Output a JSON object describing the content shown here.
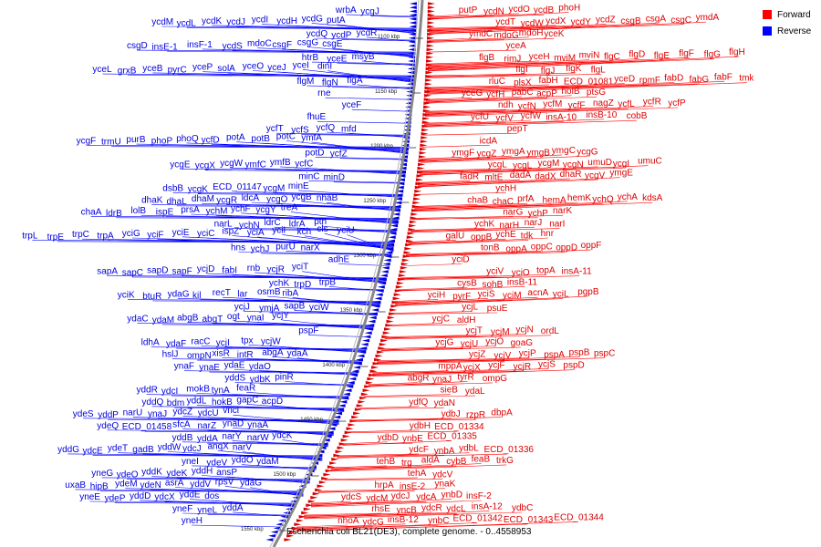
{
  "caption": "Escherichia coli BL21(DE3), complete genome. - 0..4558953",
  "legend": [
    {
      "label": "Forward",
      "color": "#ff0000"
    },
    {
      "label": "Reverse",
      "color": "#0000ff"
    }
  ],
  "ticks": [
    "1100 kbp",
    "1150 kbp",
    "1200 kbp",
    "1250 kbp",
    "1300 kbp",
    "1350 kbp",
    "1400 kbp",
    "1450 kbp",
    "1500 kbp",
    "1550 kbp"
  ],
  "reverse_genes": [
    [
      "wrbA",
      "ycgJ"
    ],
    [
      "ycdM",
      "ycdL",
      "ycdK",
      "ycdJ",
      "ycdI",
      "ycdH",
      "ycdG",
      "putA"
    ],
    [
      "ycdQ",
      "ycdP",
      "ycdR"
    ],
    [
      "csgD",
      "insE-1",
      "insF-1",
      "ycdS",
      "mdoC",
      "csgF",
      "csgG",
      "csgE"
    ],
    [
      "htrB",
      "yceE",
      "msyB"
    ],
    [
      "yceL",
      "grxB",
      "yceB",
      "pyrC",
      "yceP",
      "solA",
      "yceO",
      "yceJ",
      "yceI",
      "dinI"
    ],
    [
      "flgM",
      "flgN",
      "flgA"
    ],
    [
      "rne"
    ],
    [
      "yceF"
    ],
    [
      "fhuE"
    ],
    [
      "ycfT",
      "ycfS",
      "ycfQ",
      "mfd"
    ],
    [
      "ycgF",
      "trmU",
      "purB",
      "phoP",
      "phoQ",
      "ycfD",
      "potA",
      "potB",
      "potC",
      "ymfA"
    ],
    [
      "potD",
      "ycfZ"
    ],
    [
      "ycgE",
      "ycgX",
      "ycgW",
      "ymfC",
      "ymfB",
      "ycfC"
    ],
    [
      "minC",
      "minD"
    ],
    [
      "dsbB",
      "ycgK",
      "ECD_01147",
      "ycgM",
      "minE"
    ],
    [
      "dhaK",
      "dhaL",
      "dhaM",
      "ycgR",
      "ldcA",
      "ycgO",
      "ycgB",
      "nhaB"
    ],
    [
      "chaA",
      "ldrB",
      "lolB",
      "ispE",
      "prsA",
      "ychM",
      "ychF",
      "ycgY",
      "treA"
    ],
    [
      "narL",
      "ychN",
      "ldrC",
      "ldrA",
      "pth"
    ],
    [
      "trpL",
      "trpE",
      "trpC",
      "trpA",
      "yciG",
      "yciF",
      "yciE",
      "yciC",
      "ispZ",
      "yciA",
      "yciI",
      "kch",
      "cls",
      "yciU"
    ],
    [
      "hns",
      "ychJ",
      "purU",
      "narX"
    ],
    [
      "adhE"
    ],
    [
      "sapA",
      "sapC",
      "sapD",
      "sapF",
      "ycjD",
      "fabI",
      "rnb",
      "ycjR",
      "yciT"
    ],
    [
      "ychK",
      "trpD",
      "trpB"
    ],
    [
      "yciK",
      "btuR",
      "ydaG",
      "kil",
      "recT",
      "lar",
      "osmB",
      "ribA"
    ],
    [
      "ycjJ",
      "ymjA",
      "sapB",
      "yciW"
    ],
    [
      "ydaC",
      "ydaM",
      "abgB",
      "abgT",
      "ogt",
      "ynaI",
      "ycjY"
    ],
    [
      "pspF"
    ],
    [
      "ldhA",
      "ydaF",
      "racC",
      "ycjI",
      "tpx",
      "ycjW"
    ],
    [
      "hslJ",
      "ompN",
      "xisR",
      "intR",
      "abgA",
      "ydaA"
    ],
    [
      "ynaF",
      "ynaE",
      "ydaE",
      "ydaO"
    ],
    [
      "yddS",
      "ydbK",
      "pinR"
    ],
    [
      "yddR",
      "ydcI",
      "mokB",
      "tynA",
      "feaR"
    ],
    [
      "yddQ",
      "bdm",
      "yddL",
      "hokB",
      "gapC",
      "acpD"
    ],
    [
      "ydeS",
      "yddP",
      "narU",
      "ynaJ",
      "ydcZ",
      "ydcU",
      "vncl"
    ],
    [
      "ydeQ",
      "ECD_01458",
      "sfcA",
      "narZ",
      "ynaD",
      "ynaA"
    ],
    [
      "yddB",
      "yddA",
      "narY",
      "narW",
      "ydcK"
    ],
    [
      "yddG",
      "ydcE",
      "ydeT",
      "gadB",
      "yddW",
      "ydcJ",
      "anqX",
      "narV"
    ],
    [
      "yneI",
      "ydeV",
      "yddO",
      "ydaM"
    ],
    [
      "yneG",
      "ydeO",
      "yddK",
      "ydeK",
      "yddH",
      "ansP"
    ],
    [
      "uxaB",
      "hipB",
      "ydeM",
      "ydeN",
      "asrA",
      "yddV",
      "rpsV",
      "ydaG"
    ],
    [
      "yneE",
      "ydeP",
      "yddD",
      "ydcX",
      "yddE",
      "dos"
    ],
    [
      "yneF",
      "yneL",
      "yddA"
    ],
    [
      "yneH"
    ]
  ],
  "forward_genes": [
    [
      "putP",
      "ycdN",
      "ycdO",
      "ycdB",
      "phoH"
    ],
    [
      "ycdT",
      "ycdW",
      "ycdX",
      "ycdY",
      "ycdZ",
      "csgB",
      "csgA",
      "csgC",
      "ymdA"
    ],
    [
      "ymdC",
      "mdoG",
      "mdoH",
      "yceK"
    ],
    [
      "yceA"
    ],
    [
      "flgB",
      "rimJ",
      "yceH",
      "mviM",
      "mviN",
      "flgC",
      "flgD",
      "flgE",
      "flgF",
      "flgG",
      "flgH"
    ],
    [
      "flgI",
      "flgJ",
      "flgK",
      "flgL"
    ],
    [
      "rluC",
      "plsX",
      "fabH",
      "ECD_01081",
      "yceD",
      "rpmF",
      "fabD",
      "fabG",
      "fabF",
      "tmk"
    ],
    [
      "yceG",
      "ycfH",
      "pabC",
      "acpP",
      "holB",
      "ptsG"
    ],
    [
      "ndh",
      "ycfN",
      "ycfM",
      "ycfF",
      "nagZ",
      "ycfL",
      "ycfR",
      "ycfP"
    ],
    [
      "ycfU",
      "ycfV",
      "ycfW",
      "insA-10",
      "insB-10",
      "cobB"
    ],
    [
      "pepT"
    ],
    [
      "icdA"
    ],
    [
      "ymgF",
      "ycgZ",
      "ymgA",
      "ymgB",
      "ymgC",
      "ycgG"
    ],
    [
      "ycgL",
      "ycgL",
      "ycgM",
      "ycgN",
      "umuD",
      "ycgI",
      "umuC"
    ],
    [
      "fadR",
      "mltE",
      "dadA",
      "dadX",
      "dhaR",
      "ycgV",
      "ymgE"
    ],
    [
      "ychH"
    ],
    [
      "chaB",
      "chaC",
      "prfA",
      "hemA",
      "hemK",
      "ychQ",
      "ychA",
      "kdsA"
    ],
    [
      "narG",
      "ychP",
      "narK"
    ],
    [
      "ychK",
      "narH",
      "narJ",
      "narI"
    ],
    [
      "galU",
      "oppB",
      "ychE",
      "tdk",
      "hnr"
    ],
    [
      "tonB",
      "oppA",
      "oppC",
      "oppD",
      "oppF"
    ],
    [
      "yciD"
    ],
    [
      "yciV",
      "yciO",
      "topA",
      "insA-11"
    ],
    [
      "cysB",
      "sohB",
      "insB-11"
    ],
    [
      "yciH",
      "pyrF",
      "yciS",
      "yciM",
      "acnA",
      "yciL",
      "pgpB"
    ],
    [
      "ycjL",
      "psuE"
    ],
    [
      "ycjC",
      "aldH"
    ],
    [
      "ycjT",
      "ycjM",
      "ycjN",
      "ordL"
    ],
    [
      "ycjG",
      "ycjU",
      "ycjO",
      "goaG"
    ],
    [
      "ycjZ",
      "ycjV",
      "ycjP",
      "pspA",
      "pspB",
      "pspC"
    ],
    [
      "mppA",
      "ycjX",
      "ycjF",
      "ycjR",
      "ycjS",
      "pspD"
    ],
    [
      "abgR",
      "ynaJ",
      "tyrR",
      "ompG"
    ],
    [
      "sieB",
      "ydaL"
    ],
    [
      "ydfQ",
      "ydaN"
    ],
    [
      "ydbJ",
      "rzpR",
      "dbpA"
    ],
    [
      "ydbH",
      "ECD_01334"
    ],
    [
      "ydbD",
      "ynbE",
      "ECD_01335"
    ],
    [
      "ydcF",
      "ynbA",
      "ydbL",
      "ECD_01336"
    ],
    [
      "tehB",
      "trg",
      "aldA",
      "cybB",
      "feaB",
      "trkG"
    ],
    [
      "tehA",
      "ydcV"
    ],
    [
      "hrpA",
      "insE-2",
      "ynaK"
    ],
    [
      "ydcS",
      "ydcM",
      "ydcJ",
      "ydcA",
      "ynbD",
      "insF-2"
    ],
    [
      "rhsE",
      "yncB",
      "ydcR",
      "ydcL",
      "insA-12",
      "ydbC"
    ],
    [
      "nhoA",
      "ydcG",
      "insB-12",
      "ynbC",
      "ECD_01342",
      "ECD_01343",
      "ECD_01344"
    ]
  ]
}
